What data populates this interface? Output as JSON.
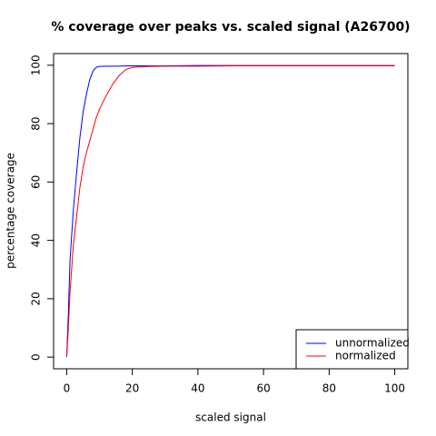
{
  "chart_data": {
    "type": "line",
    "title": "% coverage over peaks vs. scaled signal (A26700)",
    "x_label": "scaled signal",
    "y_label": "percentage coverage",
    "x": [
      0,
      0.5,
      1,
      2,
      3,
      4,
      5,
      6,
      7,
      8,
      9,
      10,
      12,
      14,
      16,
      18,
      20,
      25,
      30,
      40,
      50,
      60,
      70,
      80,
      90,
      100
    ],
    "series": [
      {
        "name": "unnormalized",
        "color": "#0000ff",
        "values": [
          0,
          15,
          33,
          50,
          63,
          75,
          84,
          90,
          95,
          98,
          99.3,
          99.6,
          99.7,
          99.7,
          99.7,
          99.8,
          99.8,
          99.8,
          99.8,
          99.9,
          99.9,
          99.9,
          99.9,
          99.9,
          99.9,
          99.9
        ]
      },
      {
        "name": "normalized",
        "color": "#ff0000",
        "values": [
          0,
          10,
          22,
          38,
          48,
          58,
          65,
          70,
          74,
          78,
          82,
          85,
          89.5,
          93.5,
          96.5,
          98.5,
          99.3,
          99.6,
          99.7,
          99.7,
          99.8,
          99.8,
          99.8,
          99.8,
          99.8,
          99.8
        ]
      }
    ],
    "xlim": [
      -4,
      104
    ],
    "xticks": [
      0,
      20,
      40,
      60,
      80,
      100
    ],
    "ylim": [
      -4,
      104
    ],
    "yticks": [
      0,
      20,
      40,
      60,
      80,
      100
    ],
    "grid": false,
    "legend": "bottom-right"
  }
}
